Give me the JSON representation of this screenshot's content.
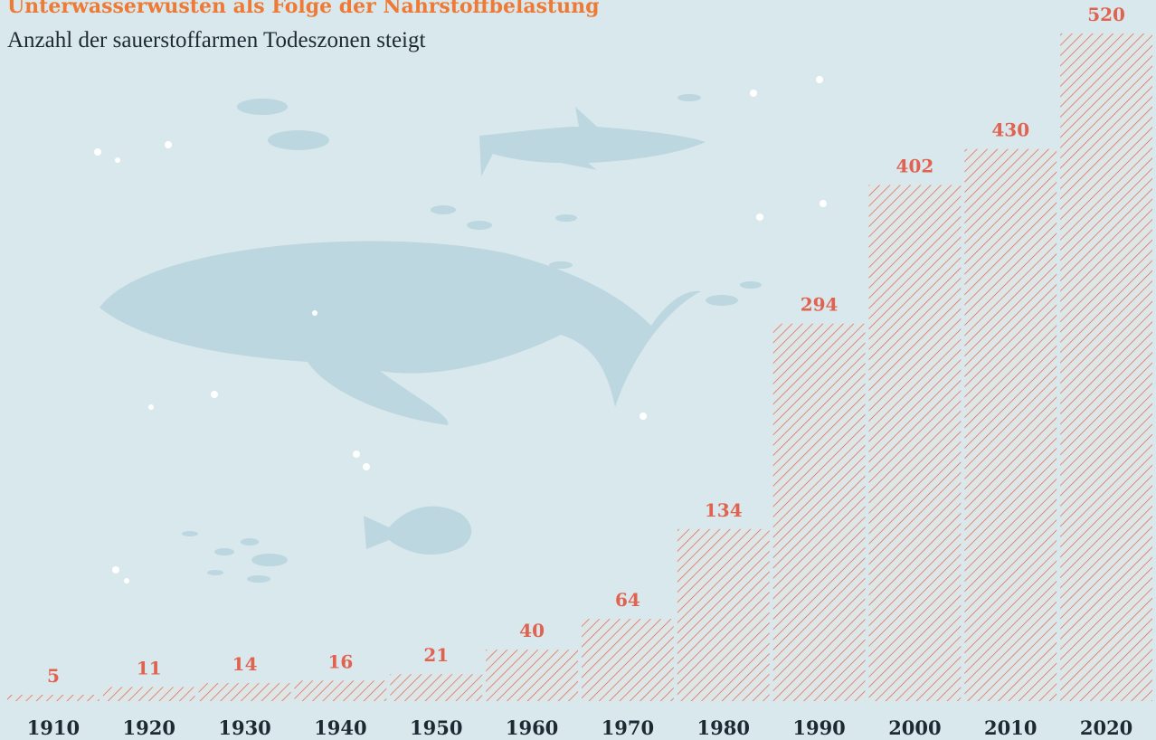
{
  "chart_data": {
    "type": "bar",
    "title": "Unterwasserwüsten als Folge der Nährstoffbelastung",
    "subtitle": "Anzahl der sauerstoffarmen Todeszonen steigt",
    "categories": [
      "1910",
      "1920",
      "1930",
      "1940",
      "1950",
      "1960",
      "1970",
      "1980",
      "1990",
      "2000",
      "2010",
      "2020"
    ],
    "values": [
      5,
      11,
      14,
      16,
      21,
      40,
      64,
      134,
      294,
      402,
      430,
      520
    ],
    "color": "#e0624f"
  }
}
